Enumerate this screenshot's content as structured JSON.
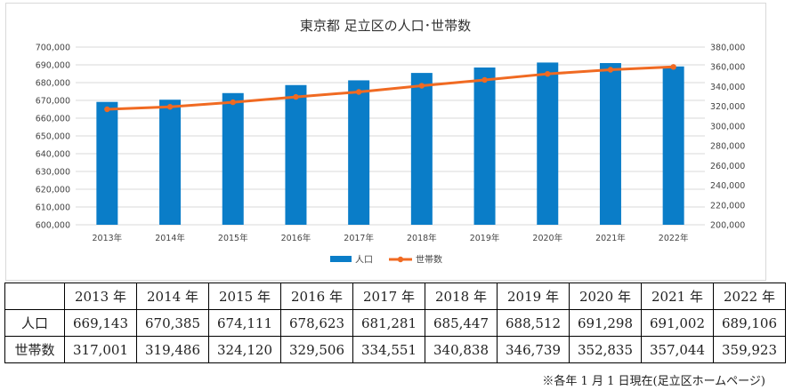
{
  "chart_data": {
    "type": "bar+line",
    "title": "東京都 足立区の人口･世帯数",
    "categories": [
      "2013年",
      "2014年",
      "2015年",
      "2016年",
      "2017年",
      "2018年",
      "2019年",
      "2020年",
      "2021年",
      "2022年"
    ],
    "series": [
      {
        "name": "人口",
        "type": "bar",
        "axis": "left",
        "color": "#0a7dc8",
        "values": [
          669143,
          670385,
          674111,
          678623,
          681281,
          685447,
          688512,
          691298,
          691002,
          689106
        ]
      },
      {
        "name": "世帯数",
        "type": "line",
        "axis": "right",
        "color": "#f06a22",
        "values": [
          317001,
          319486,
          324120,
          329506,
          334551,
          340838,
          346739,
          352835,
          357044,
          359923
        ]
      }
    ],
    "y_left": {
      "min": 600000,
      "max": 700000,
      "step": 10000,
      "ticks": [
        "600,000",
        "610,000",
        "620,000",
        "630,000",
        "640,000",
        "650,000",
        "660,000",
        "670,000",
        "680,000",
        "690,000",
        "700,000"
      ]
    },
    "y_right": {
      "min": 200000,
      "max": 380000,
      "step": 20000,
      "ticks": [
        "200,000",
        "220,000",
        "240,000",
        "260,000",
        "280,000",
        "300,000",
        "320,000",
        "340,000",
        "360,000",
        "380,000"
      ]
    },
    "grid": true,
    "legend": "bottom-center"
  },
  "table": {
    "years": [
      "2013 年",
      "2014 年",
      "2015 年",
      "2016 年",
      "2017 年",
      "2018 年",
      "2019 年",
      "2020 年",
      "2021 年",
      "2022 年"
    ],
    "rows": [
      {
        "label": "人口",
        "values": [
          "669,143",
          "670,385",
          "674,111",
          "678,623",
          "681,281",
          "685,447",
          "688,512",
          "691,298",
          "691,002",
          "689,106"
        ]
      },
      {
        "label": "世帯数",
        "values": [
          "317,001",
          "319,486",
          "324,120",
          "329,506",
          "334,551",
          "340,838",
          "346,739",
          "352,835",
          "357,044",
          "359,923"
        ]
      }
    ]
  },
  "note": "※各年 1 月 1 日現在(足立区ホームページ)"
}
